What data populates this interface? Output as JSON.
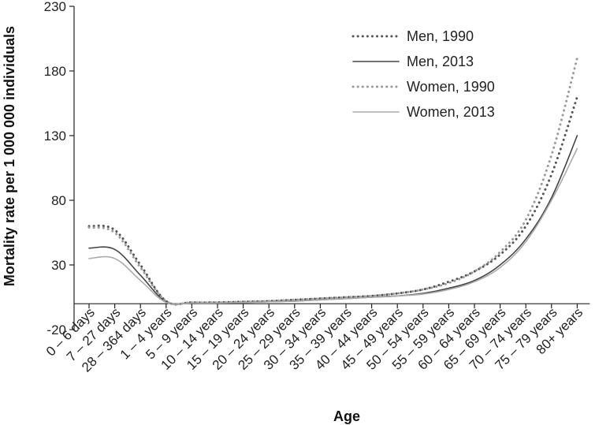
{
  "chart_data": {
    "type": "line",
    "title": "",
    "xlabel": "Age",
    "ylabel": "Mortality rate per 1 000 000 individuals",
    "ylim": [
      -20,
      230
    ],
    "yticks": [
      -20,
      30,
      80,
      130,
      180,
      230
    ],
    "grid": false,
    "legend_position": "top-right",
    "categories": [
      "0 – 6 days",
      "7 – 27 days",
      "28 – 364 days",
      "1 – 4 years",
      "5 – 9 years",
      "10 – 14 years",
      "15 – 19 years",
      "20 – 24 years",
      "25 – 29 years",
      "30 – 34 years",
      "35 – 39 years",
      "40 – 44 years",
      "45 – 49 years",
      "50 – 54 years",
      "55 – 59 years",
      "60 – 64 years",
      "65 – 69 years",
      "70 – 74 years",
      "75 – 79 years",
      "80+ years"
    ],
    "series": [
      {
        "name": "Men, 1990",
        "color": "#555555",
        "style": "dotted",
        "values": [
          60,
          57,
          30,
          2,
          1,
          1,
          1.5,
          2,
          3,
          4,
          5,
          6,
          8,
          11,
          17,
          25,
          38,
          60,
          100,
          160
        ]
      },
      {
        "name": "Men, 2013",
        "color": "#444444",
        "style": "solid",
        "values": [
          43,
          42,
          22,
          1.5,
          0.5,
          0.5,
          1,
          1.5,
          2,
          3,
          4,
          5,
          6,
          8,
          12,
          18,
          30,
          50,
          82,
          130
        ]
      },
      {
        "name": "Women, 1990",
        "color": "#9a9a9a",
        "style": "dotted",
        "values": [
          59,
          55,
          28,
          2,
          1,
          1,
          1.5,
          2,
          3,
          4,
          5,
          6,
          8,
          11,
          16,
          25,
          40,
          65,
          115,
          190
        ]
      },
      {
        "name": "Women, 2013",
        "color": "#aaaaaa",
        "style": "solid",
        "values": [
          35,
          35,
          18,
          1,
          0.5,
          0.5,
          1,
          1.5,
          2,
          3,
          4,
          5,
          6,
          7.5,
          11,
          17,
          28,
          48,
          80,
          120
        ]
      }
    ]
  }
}
